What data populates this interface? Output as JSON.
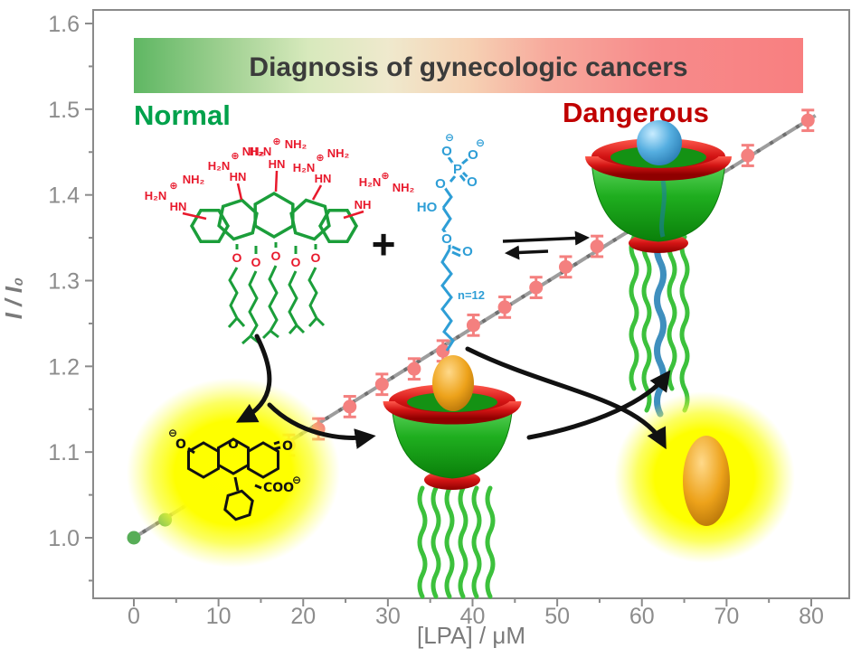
{
  "figure": {
    "banner_title": "Diagnosis of gynecologic cancers",
    "normal_label": "Normal",
    "dangerous_label": "Dangerous",
    "plus_sign": "+"
  },
  "chart_data": {
    "type": "scatter",
    "title": "Diagnosis of gynecologic cancers",
    "xlabel": "[LPA] / μM",
    "ylabel": "I / I₀",
    "xlim": [
      -4.8,
      84.5
    ],
    "ylim": [
      0.929,
      1.616
    ],
    "x_ticks": [
      0,
      10,
      20,
      30,
      40,
      50,
      60,
      70,
      80
    ],
    "x_minor_ticks": [
      5,
      15,
      25,
      35,
      45,
      55,
      65,
      75
    ],
    "y_ticks": [
      1.0,
      1.1,
      1.2,
      1.3,
      1.4,
      1.5,
      1.6
    ],
    "y_minor_ticks": [
      0.95,
      1.05,
      1.15,
      1.25,
      1.35,
      1.45,
      1.55
    ],
    "grid": false,
    "legend": null,
    "fit_line": {
      "slope": 0.00612,
      "intercept": 1.0,
      "x_start": -0.5,
      "x_end": 80.5
    },
    "series": [
      {
        "name": "normal baseline points (green)",
        "color": "#57ad57",
        "error": 0,
        "points": [
          [
            0,
            1.0
          ],
          [
            3.7,
            1.021
          ],
          [
            7.4,
            1.043
          ]
        ]
      },
      {
        "name": "LPA titration points (salmon, with error bars)",
        "color": "#f4807f",
        "error": 0.012,
        "points": [
          [
            18.3,
            1.108
          ],
          [
            21.8,
            1.127
          ],
          [
            25.5,
            1.153
          ],
          [
            29.3,
            1.179
          ],
          [
            33.1,
            1.197
          ],
          [
            36.5,
            1.218
          ],
          [
            40.1,
            1.248
          ],
          [
            43.8,
            1.269
          ],
          [
            47.5,
            1.292
          ],
          [
            51.0,
            1.316
          ],
          [
            54.7,
            1.34
          ],
          [
            72.5,
            1.446
          ],
          [
            79.6,
            1.487
          ]
        ]
      }
    ]
  },
  "structures": {
    "calixarene": {
      "o": "O",
      "hn": "HN",
      "nh": "NH",
      "h2n": "H₂N",
      "nh2": "NH₂",
      "plus_charge": "⊕"
    },
    "lpa": {
      "p": "P",
      "o": "O",
      "ho": "HO",
      "minus_charge": "⊖",
      "repeat_label": "n=12"
    },
    "fluorescein": {
      "o": "O",
      "coo": "COO",
      "minus_charge": "⊖"
    }
  },
  "colors": {
    "banner_green": "#5fb763",
    "banner_red": "#f87f80",
    "title_text": "#3b3b3b",
    "normal_text": "#00a14b",
    "dangerous_text": "#c00000",
    "point_green": "#57ad57",
    "point_salmon": "#f4807f",
    "fit_line": "#9d9d9d",
    "axis": "#8a8a8a",
    "calixarene_green": "#1b9e3a",
    "guanidinium_red": "#e8192c",
    "lpa_blue": "#2e9ed6",
    "glow_yellow": "#ffff00",
    "cup_green": "#22b422",
    "rim_red": "#cf1212",
    "dye_orange": "#e89010",
    "sphere_blue": "#3399dd"
  }
}
